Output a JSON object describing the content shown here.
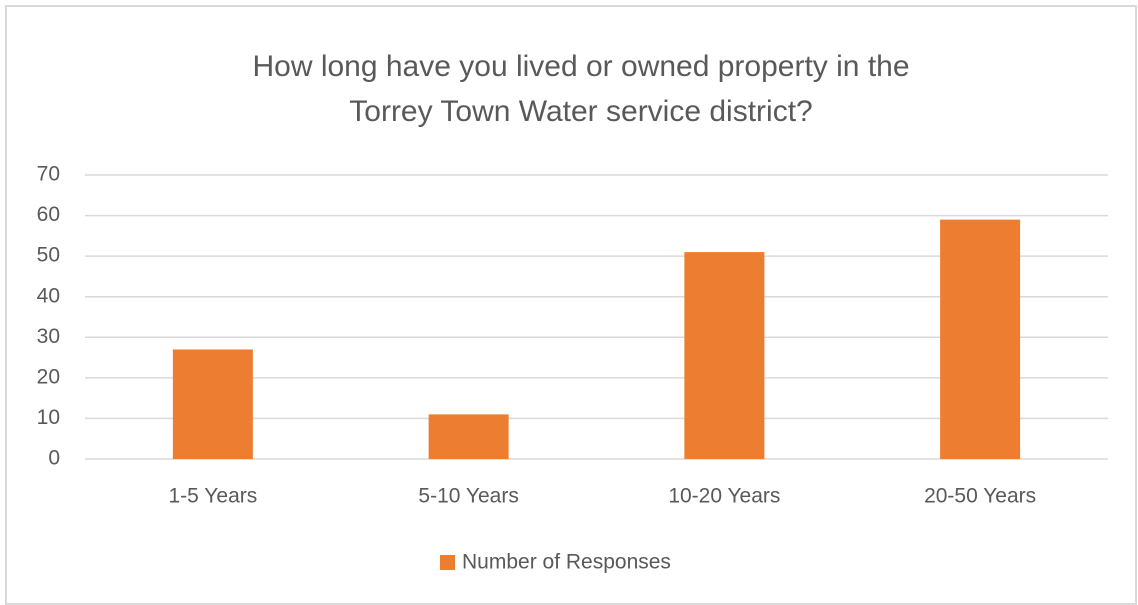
{
  "chart_data": {
    "type": "bar",
    "title": [
      "How long have you lived or owned property in the",
      "Torrey Town Water service district?"
    ],
    "categories": [
      "1-5 Years",
      "5-10 Years",
      "10-20 Years",
      "20-50 Years"
    ],
    "series": [
      {
        "name": "Number of Responses",
        "color": "#ed7d31",
        "values": [
          27,
          11,
          51,
          59
        ]
      }
    ],
    "ylim": [
      0,
      70
    ],
    "yticks": [
      0,
      10,
      20,
      30,
      40,
      50,
      60,
      70
    ],
    "grid": true,
    "legend": "bottom"
  }
}
